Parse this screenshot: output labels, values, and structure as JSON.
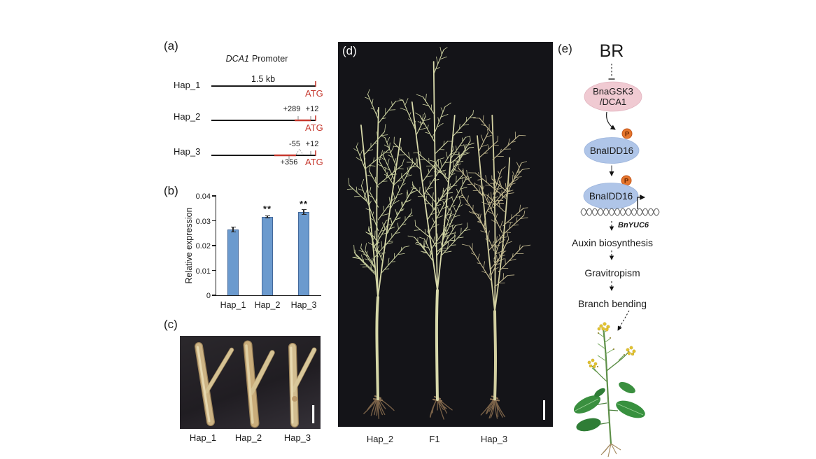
{
  "colors": {
    "red": "#c6392f",
    "pink": "#f0cad2",
    "blue": "#afc5e8",
    "orange": "#e5762d",
    "bar_fill": "#6b9ace",
    "bar_edge": "#44699c"
  },
  "panel_a": {
    "label": "(a)",
    "title_gene": "DCA1",
    "title_rest": "Promoter",
    "rows": {
      "hap1": {
        "name": "Hap_1",
        "size": "1.5 kb",
        "atg": "ATG"
      },
      "hap2": {
        "name": "Hap_2",
        "pos_a": "+289",
        "pos_b": "+12",
        "atg": "ATG"
      },
      "hap3": {
        "name": "Hap_3",
        "pos_a": "-55",
        "pos_b": "+12",
        "pos_c": "+356",
        "atg": "ATG"
      }
    }
  },
  "panel_b": {
    "label": "(b)"
  },
  "chart_data": {
    "type": "bar",
    "categories": [
      "Hap_1",
      "Hap_2",
      "Hap_3"
    ],
    "values": [
      0.0265,
      0.0315,
      0.0335
    ],
    "errors": [
      0.001,
      0.0004,
      0.001
    ],
    "significance": [
      "",
      "**",
      "**"
    ],
    "ylabel": "Relative expression",
    "xlabel": "",
    "ylim": [
      0,
      0.04
    ],
    "yticks": [
      0,
      0.01,
      0.02,
      0.03,
      0.04
    ],
    "ytick_labels": [
      "0",
      "0.01",
      "0.02",
      "0.03",
      "0.04"
    ],
    "grid": false,
    "legend": null
  },
  "panel_c": {
    "label": "(c)",
    "captions": [
      "Hap_1",
      "Hap_2",
      "Hap_3"
    ]
  },
  "panel_d": {
    "label": "(d)",
    "captions": [
      "Hap_2",
      "F1",
      "Hap_3"
    ]
  },
  "panel_e": {
    "label": "(e)",
    "br": "BR",
    "kinase_line1": "BnaGSK3",
    "kinase_line2": "/DCA1",
    "idd": "BnaIDD16",
    "phospho": "P",
    "gene": "BnYUC6",
    "steps": [
      "Auxin biosynthesis",
      "Gravitropism",
      "Branch bending"
    ]
  }
}
